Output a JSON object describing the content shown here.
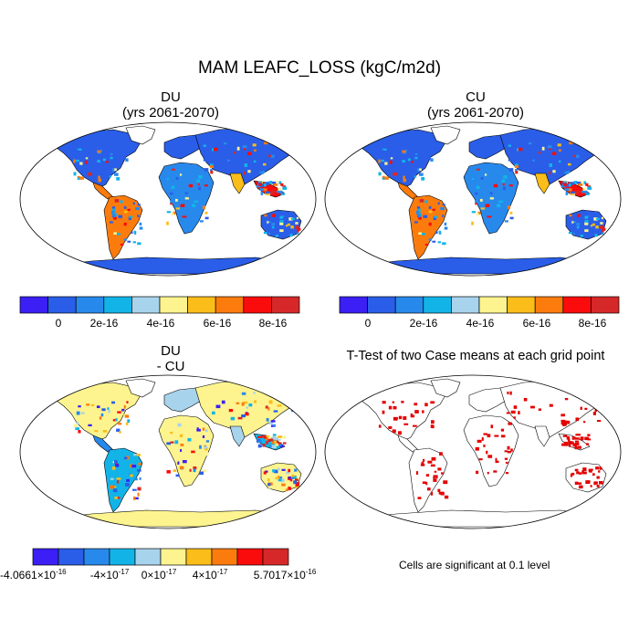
{
  "title": "MAM LEAFC_LOSS (kgC/m2d)",
  "panels": {
    "du": {
      "name": "DU",
      "period": "(yrs 2061-2070)"
    },
    "cu": {
      "name": "CU",
      "period": "(yrs 2061-2070)"
    },
    "diff": {
      "line1": "DU",
      "line2": "- CU"
    },
    "ttest": {
      "title": "T-Test of two Case means at each grid point",
      "note": "Cells are significant at 0.1 level"
    }
  },
  "colorbar_top": {
    "colors": [
      "#3b1ff5",
      "#2a5ee8",
      "#2889ec",
      "#12b4e8",
      "#a8d3ec",
      "#fdf48f",
      "#fbbd19",
      "#fb7c0d",
      "#fa0c0c",
      "#d62828"
    ],
    "labels": [
      "0",
      "2e-16",
      "4e-16",
      "6e-16",
      "8e-16"
    ]
  },
  "colorbar_diff": {
    "colors": [
      "#3b1ff5",
      "#2a5ee8",
      "#2889ec",
      "#12b4e8",
      "#a8d3ec",
      "#fdf48f",
      "#fbbd19",
      "#fb7c0d",
      "#fa0c0c",
      "#d62828"
    ],
    "labels": [
      {
        "m": "-4.0661",
        "e": "-16"
      },
      {
        "m": "-4",
        "e": "-17"
      },
      {
        "m": "0",
        "e": "-17"
      },
      {
        "m": "4",
        "e": "-17"
      },
      {
        "m": "5.7017",
        "e": "-16"
      }
    ]
  },
  "colors": {
    "ocean": "#ffffff",
    "border": "#000000",
    "significant": "#e30000"
  }
}
